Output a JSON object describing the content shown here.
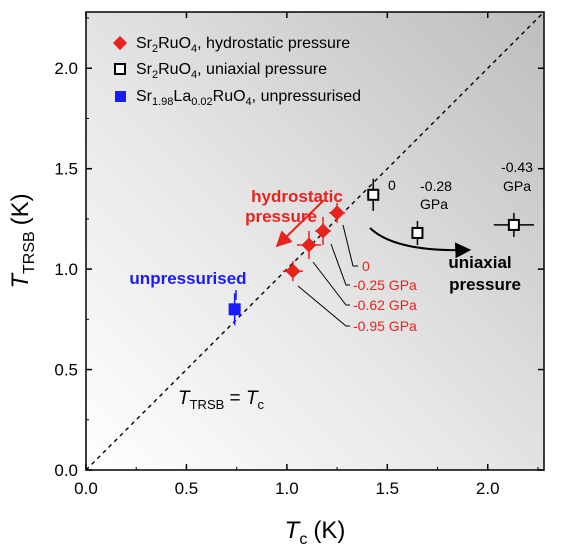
{
  "chart_data": {
    "type": "scatter",
    "xlim": [
      0,
      2.28
    ],
    "ylim": [
      0,
      2.28
    ],
    "x_ticks": [
      "0.0",
      "0.5",
      "1.0",
      "1.5",
      "2.0"
    ],
    "y_ticks": [
      "0.0",
      "0.5",
      "1.0",
      "1.5",
      "2.0"
    ],
    "x_title": {
      "main": "T",
      "sub": "c",
      "unit": "(K)"
    },
    "y_title": {
      "main": "T",
      "sub": "TRSB",
      "unit": "(K)"
    },
    "diagonal_label": {
      "lhs": "T",
      "lhs_sub": "TRSB",
      "eq": " = ",
      "rhs": "T",
      "rhs_sub": "c"
    },
    "colors": {
      "hydro": "#e8231f",
      "uni": "#000000",
      "la": "#1a1aff"
    },
    "legend_position": "top-left",
    "legend": [
      {
        "pre": "Sr",
        "sub1": "2",
        "mid": "RuO",
        "sub2": "4",
        "post": ", hydrostatic pressure",
        "marker": "red-diamond"
      },
      {
        "pre": "Sr",
        "sub1": "2",
        "mid": "RuO",
        "sub2": "4",
        "post": ", uniaxial pressure",
        "marker": "open-square"
      },
      {
        "pre": "Sr",
        "sub1": "1.98",
        "mid": "La",
        "sub2": "0.02",
        "post": "RuO",
        "sub3": "4",
        "post2": ", unpressurised",
        "marker": "blue-square"
      }
    ],
    "series": [
      {
        "name": "Sr2RuO4, hydrostatic pressure",
        "marker": "diamond",
        "points": [
          {
            "x": 1.25,
            "y": 1.28,
            "xerr": 0.04,
            "yerr": 0.05,
            "label": "0"
          },
          {
            "x": 1.18,
            "y": 1.19,
            "xerr": 0.04,
            "yerr": 0.07,
            "label": "-0.25 GPa"
          },
          {
            "x": 1.11,
            "y": 1.12,
            "xerr": 0.06,
            "yerr": 0.07,
            "label": "-0.62 GPa"
          },
          {
            "x": 1.03,
            "y": 0.99,
            "xerr": 0.05,
            "yerr": 0.05,
            "label": "-0.95 GPa"
          }
        ]
      },
      {
        "name": "Sr2RuO4, uniaxial pressure",
        "marker": "open-square",
        "points": [
          {
            "x": 1.43,
            "y": 1.37,
            "xerr": 0.03,
            "yerr": 0.08,
            "label": "0"
          },
          {
            "x": 1.65,
            "y": 1.18,
            "xerr": 0.03,
            "yerr": 0.06,
            "label": "-0.28 GPa"
          },
          {
            "x": 2.13,
            "y": 1.22,
            "xerr": 0.1,
            "yerr": 0.06,
            "label": "-0.43 GPa"
          }
        ]
      },
      {
        "name": "Sr1.98La0.02RuO4, unpressurised",
        "marker": "filled-square",
        "points": [
          {
            "x": 0.74,
            "y": 0.8,
            "xerr": 0.03,
            "yerr": 0.08
          }
        ]
      }
    ],
    "annotations": {
      "hydro_arrow_label": [
        "hydrostatic",
        "pressure"
      ],
      "uni_arrow_label": [
        "uniaxial",
        "pressure"
      ],
      "unpressurised_label": "unpressurised",
      "uni_label_0": "0",
      "uni_label_028": [
        "-0.28",
        "GPa"
      ],
      "uni_label_043": [
        "-0.43",
        "GPa"
      ]
    }
  }
}
